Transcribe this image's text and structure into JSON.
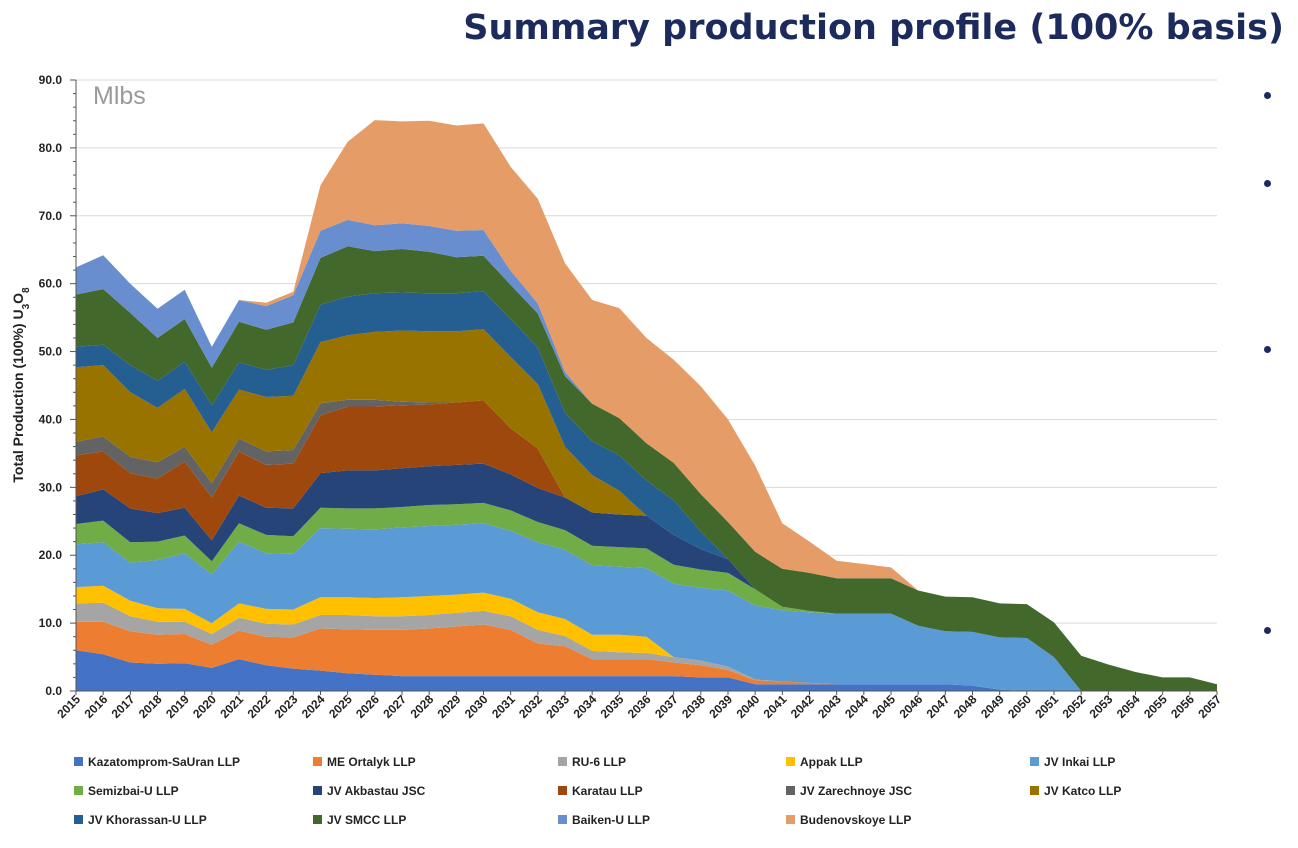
{
  "slide": {
    "title": "Summary production profile (100% basis)",
    "bullets": [
      "",
      "",
      "",
      ""
    ]
  },
  "chart_data": {
    "type": "area",
    "stacked": true,
    "title": "",
    "unit_label": "Mlbs",
    "ylabel": "Total Production (100%) U3O8",
    "xlabel": "",
    "ylim": [
      0,
      90
    ],
    "yticks": [
      "0.0",
      "10.0",
      "20.0",
      "30.0",
      "40.0",
      "50.0",
      "60.0",
      "70.0",
      "80.0",
      "90.0"
    ],
    "grid": true,
    "legend_position": "bottom",
    "x": [
      "2015",
      "2016",
      "2017",
      "2018",
      "2019",
      "2020",
      "2021",
      "2022",
      "2023",
      "2024",
      "2025",
      "2026",
      "2027",
      "2028",
      "2029",
      "2030",
      "2031",
      "2032",
      "2033",
      "2034",
      "2035",
      "2036",
      "2037",
      "2038",
      "2039",
      "2040",
      "2041",
      "2042",
      "2043",
      "2044",
      "2045",
      "2046",
      "2047",
      "2048",
      "2049",
      "2050",
      "2051",
      "2052",
      "2053",
      "2054",
      "2055",
      "2056",
      "2057"
    ],
    "series": [
      {
        "name": "Kazatomprom-SaUran LLP",
        "color": "#4472c4",
        "values": [
          6.0,
          5.4,
          4.2,
          4.0,
          4.1,
          3.4,
          4.7,
          3.8,
          3.3,
          3.0,
          2.6,
          2.4,
          2.2,
          2.2,
          2.2,
          2.2,
          2.2,
          2.2,
          2.2,
          2.2,
          2.2,
          2.2,
          2.2,
          2.0,
          2.0,
          1.0,
          1.0,
          1.0,
          1.0,
          1.0,
          1.0,
          1.0,
          1.0,
          0.8,
          0.2,
          0,
          0,
          0,
          0,
          0,
          0,
          0,
          0
        ]
      },
      {
        "name": "ME Ortalyk LLP",
        "color": "#ed7d31",
        "values": [
          4.2,
          4.8,
          4.6,
          4.3,
          4.3,
          3.4,
          4.2,
          4.2,
          4.6,
          6.2,
          6.5,
          6.6,
          6.8,
          7.0,
          7.3,
          7.6,
          6.8,
          4.8,
          4.4,
          2.5,
          2.5,
          2.5,
          2.0,
          1.8,
          1.1,
          0.6,
          0.4,
          0.2,
          0,
          0,
          0,
          0,
          0,
          0,
          0,
          0,
          0,
          0,
          0,
          0,
          0,
          0,
          0
        ]
      },
      {
        "name": "RU-6 LLP",
        "color": "#a5a5a5",
        "values": [
          2.7,
          2.8,
          2.2,
          1.9,
          1.8,
          1.6,
          1.9,
          1.9,
          1.9,
          2.0,
          2.1,
          2.0,
          2.0,
          2.0,
          2.0,
          2.0,
          2.0,
          2.0,
          1.5,
          1.2,
          1.0,
          0.9,
          0.8,
          0.7,
          0.5,
          0.1,
          0,
          0,
          0,
          0,
          0,
          0,
          0,
          0,
          0,
          0,
          0,
          0,
          0,
          0,
          0,
          0,
          0
        ]
      },
      {
        "name": "Appak LLP",
        "color": "#ffc000",
        "values": [
          2.4,
          2.5,
          2.3,
          2.0,
          1.9,
          1.6,
          2.1,
          2.2,
          2.2,
          2.6,
          2.6,
          2.7,
          2.8,
          2.8,
          2.7,
          2.7,
          2.6,
          2.6,
          2.5,
          2.4,
          2.6,
          2.4,
          0,
          0,
          0,
          0,
          0,
          0,
          0,
          0,
          0,
          0,
          0,
          0,
          0,
          0,
          0,
          0,
          0,
          0,
          0,
          0,
          0
        ]
      },
      {
        "name": "JV Inkai LLP",
        "color": "#5b9bd5",
        "values": [
          6.3,
          6.4,
          5.6,
          7.1,
          8.2,
          7.2,
          9.1,
          8.2,
          8.2,
          10.2,
          10.1,
          10.1,
          10.3,
          10.3,
          10.3,
          10.2,
          10.0,
          10.3,
          10.2,
          10.2,
          10.0,
          10.1,
          10.8,
          10.7,
          11.2,
          10.9,
          10.5,
          10.4,
          10.4,
          10.4,
          10.4,
          8.6,
          7.8,
          7.9,
          7.7,
          7.8,
          5.0,
          0,
          0,
          0,
          0,
          0,
          0
        ]
      },
      {
        "name": "Semizbai-U LLP",
        "color": "#70ad47",
        "values": [
          3.0,
          3.2,
          3.0,
          2.7,
          2.6,
          1.9,
          2.7,
          2.7,
          2.6,
          3.0,
          3.0,
          3.1,
          3.0,
          3.1,
          3.0,
          3.0,
          3.0,
          3.0,
          2.9,
          2.9,
          2.9,
          2.9,
          2.8,
          2.7,
          2.6,
          2.4,
          0.5,
          0.2,
          0,
          0,
          0,
          0,
          0,
          0,
          0,
          0,
          0,
          0,
          0,
          0,
          0,
          0,
          0
        ]
      },
      {
        "name": "JV Akbastau JSC",
        "color": "#264478",
        "values": [
          4.1,
          4.6,
          5.0,
          4.2,
          4.1,
          3.1,
          4.1,
          4.0,
          4.1,
          5.1,
          5.6,
          5.6,
          5.7,
          5.7,
          5.8,
          5.8,
          5.3,
          5.0,
          4.8,
          4.9,
          4.8,
          4.8,
          4.4,
          3.0,
          2.0,
          0,
          0,
          0,
          0,
          0,
          0,
          0,
          0,
          0,
          0,
          0,
          0,
          0,
          0,
          0,
          0,
          0,
          0
        ]
      },
      {
        "name": "Karatau LLP",
        "color": "#9e480e",
        "values": [
          6.0,
          5.6,
          5.2,
          5.1,
          6.8,
          6.3,
          6.5,
          6.3,
          6.6,
          8.5,
          9.4,
          9.4,
          9.3,
          9.1,
          9.2,
          9.3,
          6.8,
          5.8,
          0,
          0,
          0,
          0,
          0,
          0,
          0,
          0,
          0,
          0,
          0,
          0,
          0,
          0,
          0,
          0,
          0,
          0,
          0,
          0,
          0,
          0,
          0,
          0,
          0
        ]
      },
      {
        "name": "JV Zarechnoye JSC",
        "color": "#636363",
        "values": [
          2.0,
          2.2,
          2.4,
          2.4,
          2.2,
          2.1,
          1.9,
          2.0,
          2.0,
          1.8,
          1.0,
          1.0,
          0.5,
          0.3,
          0,
          0,
          0,
          0,
          0,
          0,
          0,
          0,
          0,
          0,
          0,
          0,
          0,
          0,
          0,
          0,
          0,
          0,
          0,
          0,
          0,
          0,
          0,
          0,
          0,
          0,
          0,
          0,
          0
        ]
      },
      {
        "name": "JV Katco LLP",
        "color": "#997300",
        "values": [
          11.0,
          10.5,
          9.5,
          8.0,
          8.5,
          7.5,
          7.2,
          8.0,
          8.0,
          9.0,
          9.5,
          10.0,
          10.5,
          10.5,
          10.5,
          10.5,
          10.5,
          9.5,
          7.5,
          5.5,
          3.5,
          0,
          0,
          0,
          0,
          0,
          0,
          0,
          0,
          0,
          0,
          0,
          0,
          0,
          0,
          0,
          0,
          0,
          0,
          0,
          0,
          0,
          0
        ]
      },
      {
        "name": "JV Khorassan-U LLP",
        "color": "#255e91",
        "values": [
          3.0,
          3.0,
          4.0,
          4.0,
          4.0,
          4.0,
          4.0,
          4.0,
          4.5,
          5.5,
          5.7,
          5.7,
          5.6,
          5.6,
          5.6,
          5.6,
          5.6,
          5.4,
          5.0,
          5.0,
          5.2,
          5.2,
          5.1,
          2.6,
          0,
          0,
          0,
          0,
          0,
          0,
          0,
          0,
          0,
          0,
          0,
          0,
          0,
          0,
          0,
          0,
          0,
          0,
          0
        ]
      },
      {
        "name": "JV SMCC LLP",
        "color": "#43682b",
        "values": [
          7.7,
          8.2,
          7.7,
          6.3,
          6.3,
          5.5,
          6.0,
          5.9,
          6.3,
          6.9,
          7.4,
          6.2,
          6.4,
          6.1,
          5.3,
          5.2,
          5.0,
          5.0,
          5.4,
          5.5,
          5.5,
          5.5,
          5.5,
          5.5,
          5.5,
          5.5,
          5.6,
          5.6,
          5.2,
          5.2,
          5.2,
          5.2,
          5.1,
          5.1,
          5.0,
          5.0,
          5.1,
          5.2,
          3.9,
          2.8,
          2.0,
          2.0,
          1.0
        ]
      },
      {
        "name": "Baiken-U LLP",
        "color": "#698ed0",
        "values": [
          4.0,
          5.0,
          4.3,
          4.3,
          4.3,
          3.1,
          3.2,
          3.5,
          4.0,
          4.0,
          3.9,
          3.8,
          3.8,
          3.8,
          3.9,
          3.8,
          2.1,
          1.5,
          0.6,
          0,
          0,
          0,
          0,
          0,
          0,
          0,
          0,
          0,
          0,
          0,
          0,
          0,
          0,
          0,
          0,
          0,
          0,
          0,
          0,
          0,
          0,
          0,
          0
        ]
      },
      {
        "name": "Budenovskoye LLP",
        "color": "#e69c66",
        "values": [
          0,
          0,
          0,
          0,
          0,
          0,
          0,
          0.5,
          0.5,
          6.7,
          11.5,
          15.5,
          15.0,
          15.5,
          15.5,
          15.7,
          15.3,
          15.4,
          16.0,
          15.3,
          16.2,
          15.5,
          15.2,
          15.9,
          15.1,
          12.7,
          6.7,
          4.6,
          2.6,
          2.1,
          1.6,
          0,
          0,
          0,
          0,
          0,
          0,
          0,
          0,
          0,
          0,
          0,
          0
        ]
      }
    ]
  }
}
